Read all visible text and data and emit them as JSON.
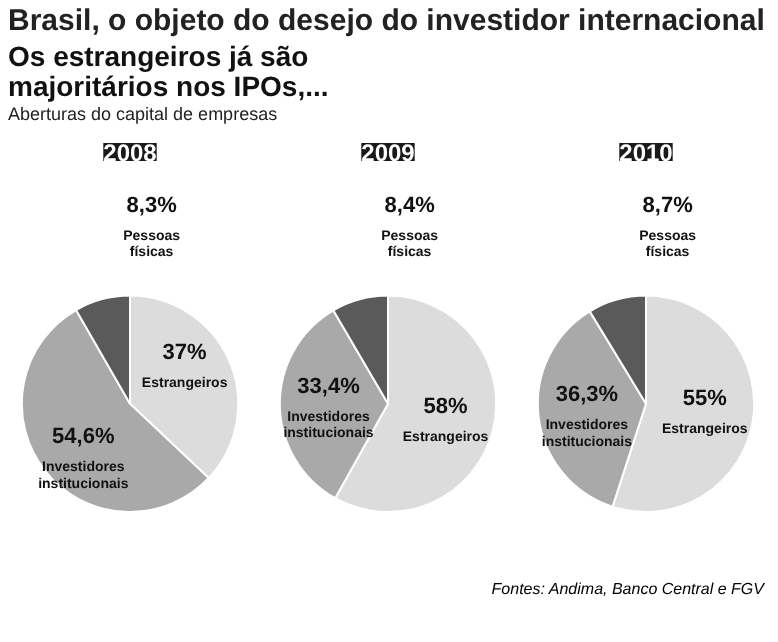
{
  "chart_data": [
    {
      "type": "pie",
      "title": "2008",
      "categories": [
        "Estrangeiros",
        "Investidores institucionais",
        "Pessoas físicas"
      ],
      "values": [
        37,
        54.6,
        8.3
      ],
      "value_labels": [
        "37%",
        "54,6%",
        "8,3%"
      ],
      "colors": [
        "#dcdcdc",
        "#a9a9a9",
        "#5a5a5a"
      ],
      "legend": false,
      "annotations": [
        "Brasil, o objeto do desejo do investidor internacional",
        "Os estrangeiros já são majoritários nos IPOs,...",
        "Aberturas do capital de empresas"
      ]
    },
    {
      "type": "pie",
      "title": "2009",
      "categories": [
        "Estrangeiros",
        "Investidores institucionais",
        "Pessoas físicas"
      ],
      "values": [
        58,
        33.4,
        8.4
      ],
      "value_labels": [
        "58%",
        "33,4%",
        "8,4%"
      ],
      "colors": [
        "#dcdcdc",
        "#a9a9a9",
        "#5a5a5a"
      ],
      "legend": false
    },
    {
      "type": "pie",
      "title": "2010",
      "categories": [
        "Estrangeiros",
        "Investidores institucionais",
        "Pessoas físicas"
      ],
      "values": [
        55,
        36.3,
        8.7
      ],
      "value_labels": [
        "55%",
        "36,3%",
        "8,7%"
      ],
      "colors": [
        "#dcdcdc",
        "#a9a9a9",
        "#5a5a5a"
      ],
      "legend": false,
      "annotations": [
        "Fontes: Andima, Banco Central e FGV"
      ]
    }
  ]
}
